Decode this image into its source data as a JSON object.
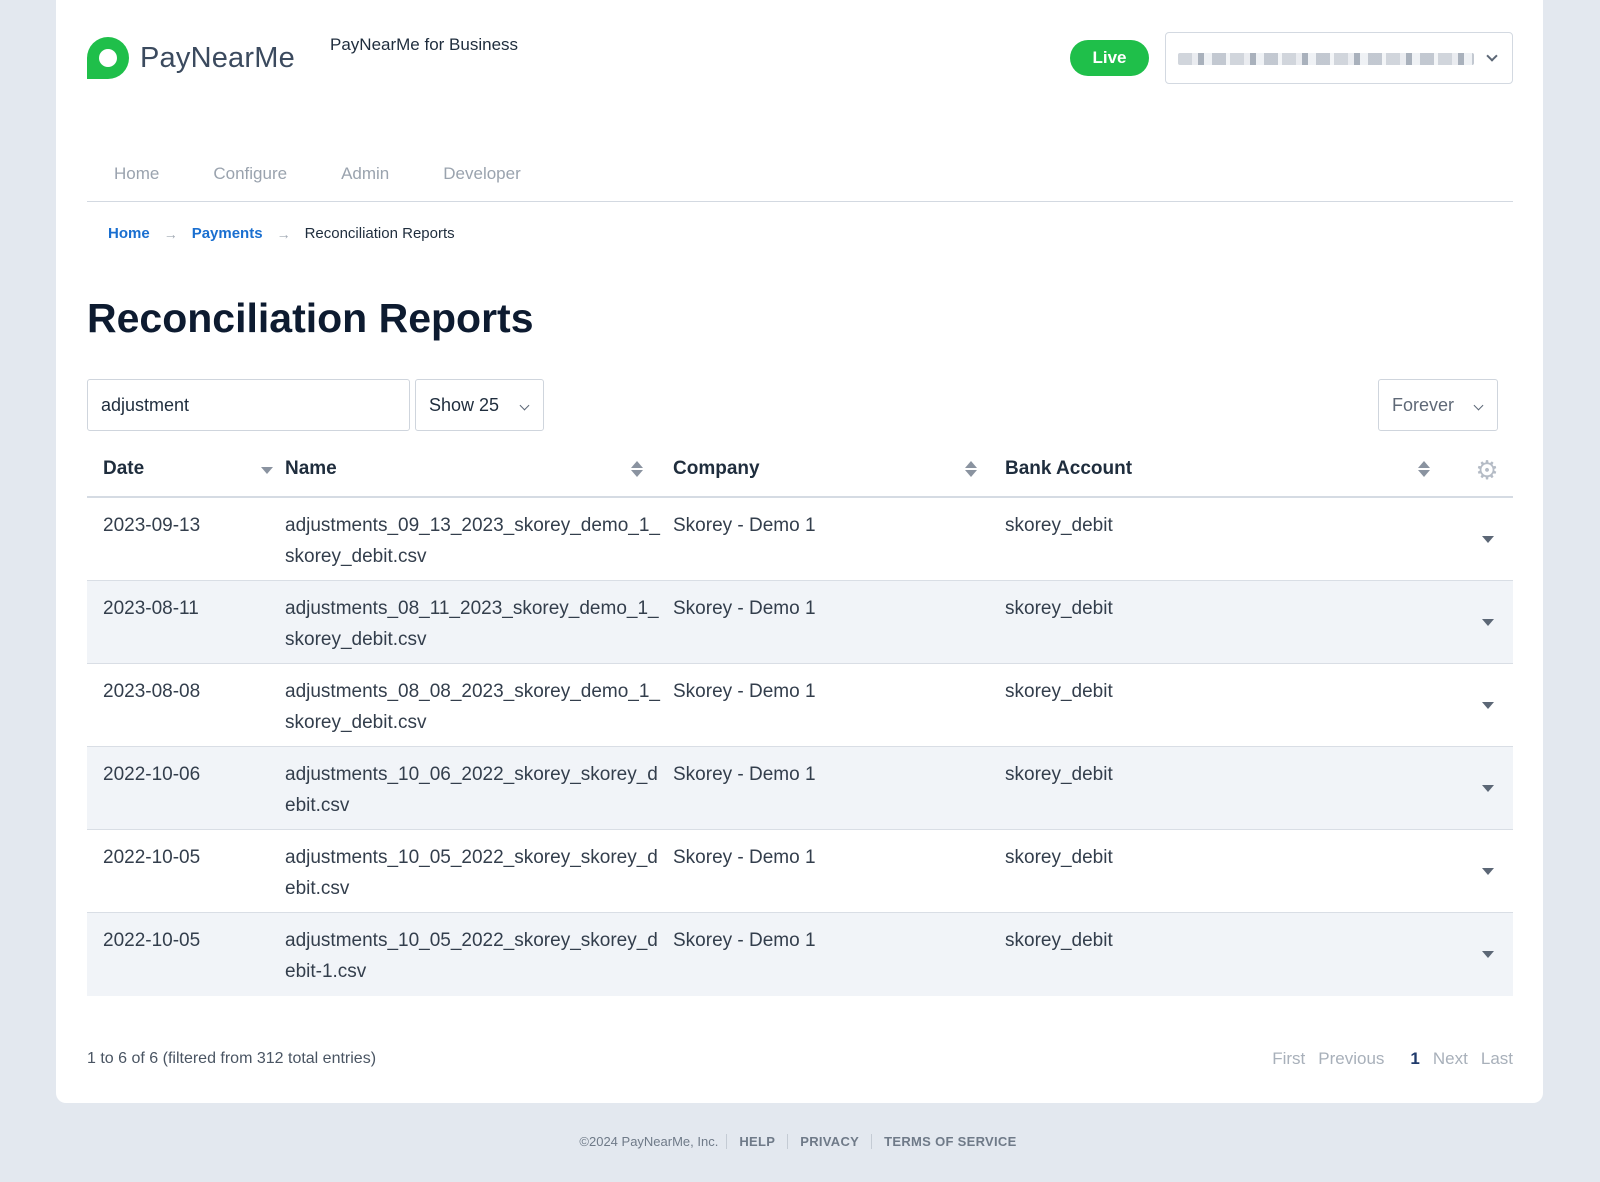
{
  "header": {
    "brand": "PayNearMe",
    "tagline": "PayNearMe for Business",
    "live_label": "Live"
  },
  "nav": {
    "tabs": [
      "Home",
      "Configure",
      "Admin",
      "Developer"
    ]
  },
  "breadcrumb": {
    "home": "Home",
    "payments": "Payments",
    "current": "Reconciliation Reports",
    "arrow": "→"
  },
  "page": {
    "title": "Reconciliation Reports"
  },
  "controls": {
    "search_value": "adjustment",
    "show_label": "Show 25",
    "range_label": "Forever"
  },
  "table": {
    "columns": [
      "Date",
      "Name",
      "Company",
      "Bank Account"
    ],
    "rows": [
      {
        "date": "2023-09-13",
        "name": "adjustments_09_13_2023_skorey_demo_1_skorey_debit.csv",
        "company": "Skorey - Demo 1",
        "bank": "skorey_debit"
      },
      {
        "date": "2023-08-11",
        "name": "adjustments_08_11_2023_skorey_demo_1_skorey_debit.csv",
        "company": "Skorey - Demo 1",
        "bank": "skorey_debit"
      },
      {
        "date": "2023-08-08",
        "name": "adjustments_08_08_2023_skorey_demo_1_skorey_debit.csv",
        "company": "Skorey - Demo 1",
        "bank": "skorey_debit"
      },
      {
        "date": "2022-10-06",
        "name": "adjustments_10_06_2022_skorey_skorey_debit.csv",
        "company": "Skorey - Demo 1",
        "bank": "skorey_debit"
      },
      {
        "date": "2022-10-05",
        "name": "adjustments_10_05_2022_skorey_skorey_debit.csv",
        "company": "Skorey - Demo 1",
        "bank": "skorey_debit"
      },
      {
        "date": "2022-10-05",
        "name": "adjustments_10_05_2022_skorey_skorey_debit-1.csv",
        "company": "Skorey - Demo 1",
        "bank": "skorey_debit"
      }
    ]
  },
  "pagination": {
    "info": "1 to 6 of 6 (filtered from 312 total entries)",
    "first": "First",
    "previous": "Previous",
    "current": "1",
    "next": "Next",
    "last": "Last"
  },
  "footer": {
    "copyright": "©2024 PayNearMe, Inc.",
    "help": "HELP",
    "privacy": "PRIVACY",
    "terms": "TERMS OF SERVICE"
  },
  "colors": {
    "brand_green": "#1fbf4a",
    "link_blue": "#1a6fd0",
    "title_navy": "#0d1b30"
  },
  "icons": {
    "logo": "paynearme-logo-icon",
    "sort": "sort-both-icon",
    "sort_desc": "sort-desc-icon",
    "settings": "gear-icon",
    "expand": "caret-down-icon"
  }
}
